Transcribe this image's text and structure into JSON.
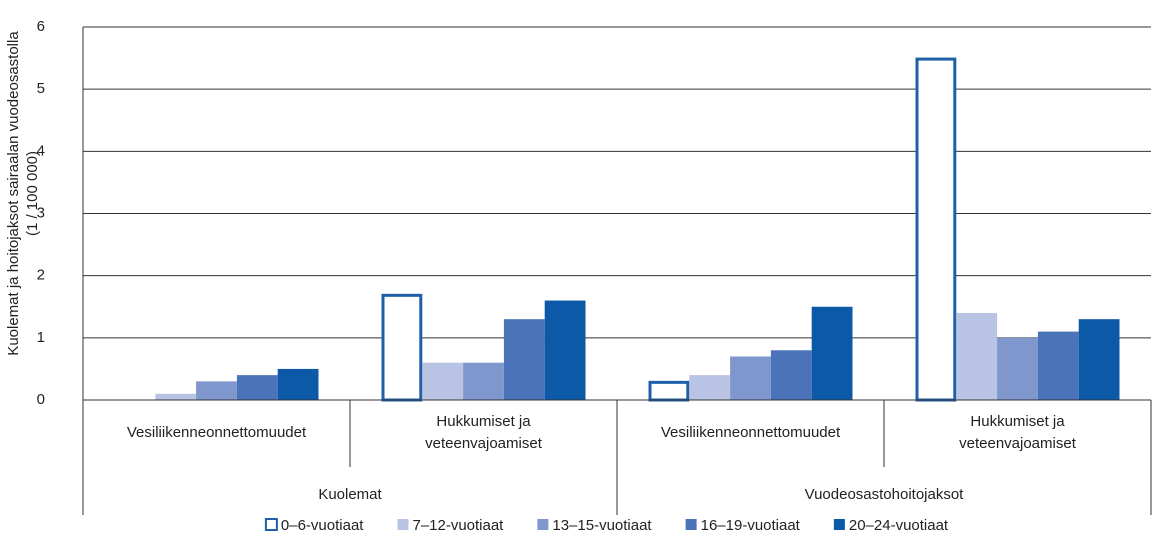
{
  "chart_data": {
    "type": "bar",
    "ylabel": [
      "Kuolemat ja hoitojaksot sairaalan vuodeosastolla",
      "(1 / 100 000)"
    ],
    "categories": [
      "Vesiliikenneonnettomuudet",
      "Hukkumiset ja\nveteenvajoamiset",
      "Vesiliikenneonnettomuudet",
      "Hukkumiset ja\nveteenvajoamiset"
    ],
    "groups": [
      "Kuolemat",
      "Vuodeosastohoitojaksot"
    ],
    "series": [
      {
        "name": "0–6-vuotiaat",
        "color": "#ffffff",
        "stroke": "#1f5fa8",
        "values": [
          0,
          1.7,
          0.3,
          5.5
        ]
      },
      {
        "name": "7–12-vuotiaat",
        "color": "#b9c3e3",
        "values": [
          0.1,
          0.6,
          0.4,
          1.4
        ]
      },
      {
        "name": "13–15-vuotiaat",
        "color": "#7f97cc",
        "values": [
          0.3,
          0.6,
          0.7,
          1.0
        ]
      },
      {
        "name": "16–19-vuotiaat",
        "color": "#4a73ba",
        "values": [
          0.4,
          1.3,
          0.8,
          1.1
        ]
      },
      {
        "name": "20–24-vuotiaat",
        "color": "#0b59a7",
        "values": [
          0.5,
          1.6,
          1.5,
          1.3
        ]
      }
    ],
    "ylim": [
      0,
      6
    ],
    "yticks": [
      0,
      1,
      2,
      3,
      4,
      5,
      6
    ],
    "grid": true,
    "legend": "bottom"
  }
}
